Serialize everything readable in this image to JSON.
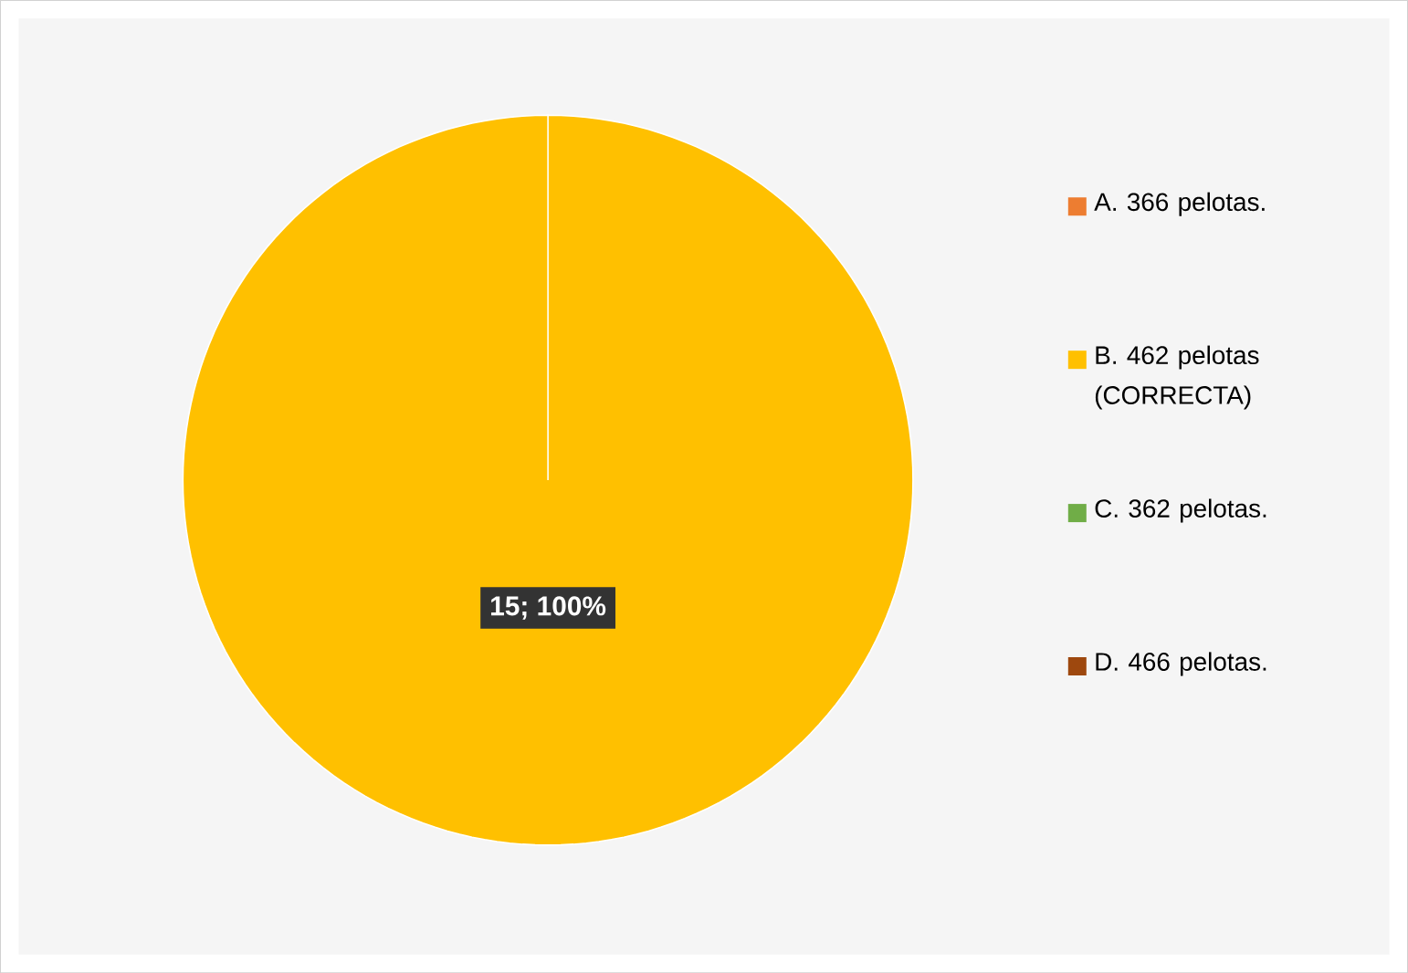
{
  "chart_data": {
    "type": "pie",
    "categories": [
      "A.   366 pelotas.",
      "B.   462 pelotas (CORRECTA)",
      "C.   362 pelotas.",
      "D. 466 pelotas."
    ],
    "values": [
      0,
      15,
      0,
      0
    ],
    "colors": [
      "#ed7d31",
      "#ffc000",
      "#70ad47",
      "#9e480e"
    ],
    "value_labels": [
      null,
      "15; 100%",
      null,
      null
    ],
    "legend": "right"
  }
}
